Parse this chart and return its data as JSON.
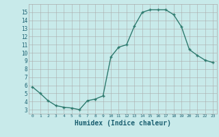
{
  "x": [
    0,
    1,
    2,
    3,
    4,
    5,
    6,
    7,
    8,
    9,
    10,
    11,
    12,
    13,
    14,
    15,
    16,
    17,
    18,
    19,
    20,
    21,
    22,
    23
  ],
  "y": [
    5.8,
    5.0,
    4.1,
    3.5,
    3.3,
    3.2,
    3.0,
    4.1,
    4.3,
    4.7,
    9.5,
    10.7,
    11.0,
    13.3,
    15.0,
    15.3,
    15.3,
    15.3,
    14.7,
    13.2,
    10.4,
    9.7,
    9.1,
    8.8
  ],
  "line_color": "#2d7a6e",
  "marker": "+",
  "marker_size": 3.5,
  "line_width": 1.0,
  "xlabel": "Humidex (Indice chaleur)",
  "xlabel_fontsize": 7,
  "xlabel_fontweight": "bold",
  "xlabel_color": "#1a5f70",
  "bg_color": "#c8eaea",
  "grid_color": "#aaaaaa",
  "axis_bg": "#c8eaea",
  "tick_label_color": "#1a5f70",
  "yticks": [
    3,
    4,
    5,
    6,
    7,
    8,
    9,
    10,
    11,
    12,
    13,
    14,
    15
  ],
  "xtick_labels": [
    "0",
    "1",
    "2",
    "3",
    "4",
    "5",
    "6",
    "7",
    "8",
    "9",
    "10",
    "11",
    "12",
    "13",
    "14",
    "15",
    "16",
    "17",
    "18",
    "19",
    "20",
    "21",
    "22",
    "23"
  ],
  "xticks": [
    0,
    1,
    2,
    3,
    4,
    5,
    6,
    7,
    8,
    9,
    10,
    11,
    12,
    13,
    14,
    15,
    16,
    17,
    18,
    19,
    20,
    21,
    22,
    23
  ],
  "ylim": [
    2.5,
    16.0
  ],
  "xlim": [
    -0.5,
    23.5
  ]
}
